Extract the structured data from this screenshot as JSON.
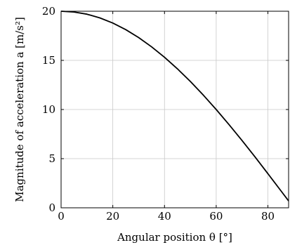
{
  "chart_data": {
    "type": "line",
    "title": "",
    "xlabel": "Angular position θ [°]",
    "ylabel": "Magnitude of acceleration a [m/s²]",
    "xlim": [
      0,
      88
    ],
    "ylim": [
      0,
      20
    ],
    "xticks": [
      0,
      20,
      40,
      60,
      80
    ],
    "yticks": [
      0,
      5,
      10,
      15,
      20
    ],
    "grid": true,
    "legend": "none",
    "series": [
      {
        "color": "#000000",
        "x": [
          0,
          5,
          10,
          15,
          20,
          25,
          30,
          35,
          40,
          45,
          50,
          55,
          60,
          65,
          70,
          75,
          80,
          85,
          88
        ],
        "y": [
          20.0,
          19.92,
          19.7,
          19.32,
          18.8,
          18.13,
          17.32,
          16.38,
          15.32,
          14.14,
          12.86,
          11.47,
          10.0,
          8.45,
          6.84,
          5.18,
          3.47,
          1.74,
          0.7
        ]
      }
    ]
  }
}
